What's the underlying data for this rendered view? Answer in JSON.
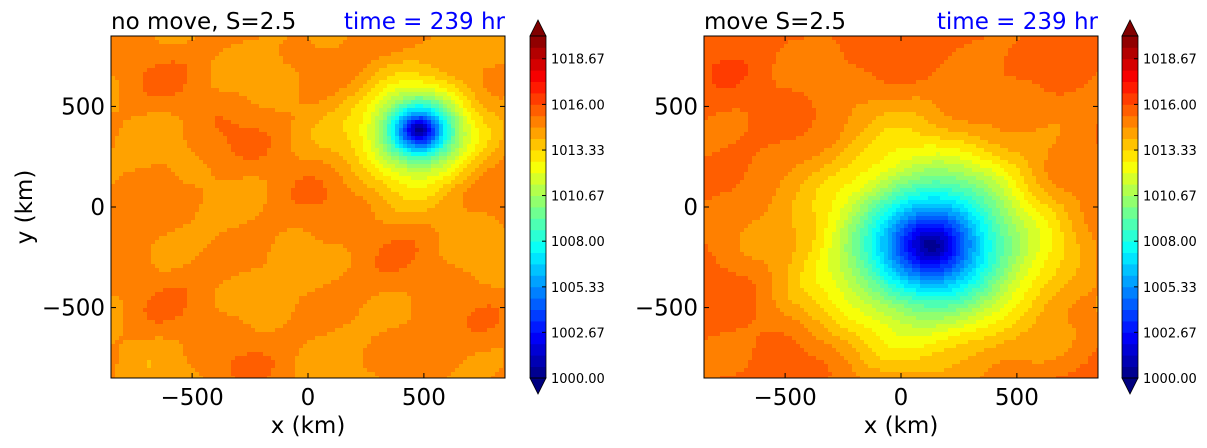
{
  "figure": {
    "colors": {
      "time_title": "#0000ff",
      "text": "#000000",
      "colormap": "jet"
    }
  },
  "chart_data": [
    {
      "type": "heatmap",
      "title": "no move, S=2.5",
      "title_right": "time = 239 hr",
      "xlabel": "x (km)",
      "ylabel": "y (km)",
      "xlim": [
        -850,
        850
      ],
      "ylim": [
        -850,
        850
      ],
      "xticks": [
        -500,
        0,
        500
      ],
      "yticks": [
        -500,
        0,
        500
      ],
      "xtick_labels": [
        "−500",
        "0",
        "500"
      ],
      "ytick_labels": [
        "−500",
        "0",
        "500"
      ],
      "field": {
        "background": 1014.8,
        "noise": 0.9,
        "vortex": {
          "center_x": 480,
          "center_y": 380,
          "min_value": 1000.0,
          "radius_km": 150
        }
      },
      "colorbar": {
        "vmin": 1000.0,
        "vmax": 1020.0,
        "levels": 30,
        "extend": "both",
        "tick_values": [
          1000.0,
          1002.67,
          1005.33,
          1008.0,
          1010.67,
          1013.33,
          1016.0,
          1018.67
        ],
        "tick_labels": [
          "1000.00",
          "1002.67",
          "1005.33",
          "1008.00",
          "1010.67",
          "1013.33",
          "1016.00",
          "1018.67"
        ]
      }
    },
    {
      "type": "heatmap",
      "title": "move S=2.5",
      "title_right": "time = 239 hr",
      "xlabel": "x (km)",
      "ylabel": "",
      "xlim": [
        -850,
        850
      ],
      "ylim": [
        -850,
        850
      ],
      "xticks": [
        -500,
        0,
        500
      ],
      "yticks": [
        -500,
        0,
        500
      ],
      "xtick_labels": [
        "−500",
        "0",
        "500"
      ],
      "ytick_labels": [
        "−500",
        "0",
        "500"
      ],
      "field": {
        "background": 1015.6,
        "noise": 0.7,
        "vortex": {
          "center_x": 130,
          "center_y": -190,
          "min_value": 1000.0,
          "radius_km": 330
        }
      },
      "colorbar": {
        "vmin": 1000.0,
        "vmax": 1020.0,
        "levels": 30,
        "extend": "both",
        "tick_values": [
          1000.0,
          1002.67,
          1005.33,
          1008.0,
          1010.67,
          1013.33,
          1016.0,
          1018.67
        ],
        "tick_labels": [
          "1000.00",
          "1002.67",
          "1005.33",
          "1008.00",
          "1010.67",
          "1013.33",
          "1016.00",
          "1018.67"
        ]
      }
    }
  ]
}
